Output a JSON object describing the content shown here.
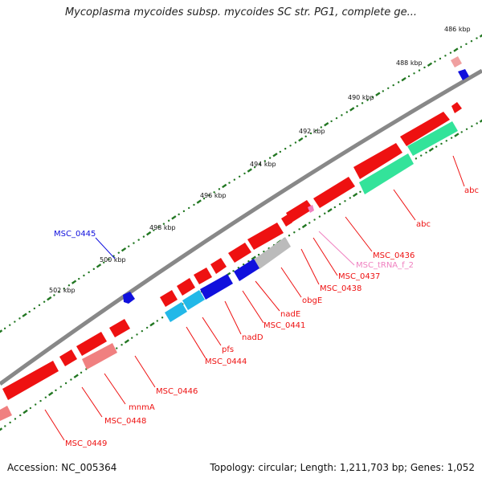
{
  "title": "Mycoplasma mycoides subsp. mycoides SC str. PG1, complete ge...",
  "footer": {
    "accession": "Accession: NC_005364",
    "topology": "Topology: circular; Length: 1,211,703 bp; Genes: 1,052"
  },
  "colors": {
    "backbone": "#808080",
    "cds_forward": "#ee1111",
    "cds_reverse": "#ee1111",
    "blue": "#1010dd",
    "cyan": "#22b8e8",
    "green": "#33e39a",
    "grey": "#bbbbbb",
    "pink": "#f08080",
    "trna_label": "#f080c0",
    "tick": "#227722"
  },
  "scale": {
    "ticks": [
      {
        "label": "486 kbp"
      },
      {
        "label": "488 kbp"
      },
      {
        "label": "490 kbp"
      },
      {
        "label": "492 kbp"
      },
      {
        "label": "494 kbp"
      },
      {
        "label": "496 kbp"
      },
      {
        "label": "498 kbp"
      },
      {
        "label": "500 kbp"
      },
      {
        "label": "502 kbp"
      }
    ]
  },
  "gene_labels": [
    {
      "text": "abc",
      "color": "red"
    },
    {
      "text": "abc",
      "color": "red"
    },
    {
      "text": "MSC_0436",
      "color": "red"
    },
    {
      "text": "MSC_tRNA_f_2",
      "color": "pink"
    },
    {
      "text": "MSC_0437",
      "color": "red"
    },
    {
      "text": "MSC_0438",
      "color": "red"
    },
    {
      "text": "obgE",
      "color": "red"
    },
    {
      "text": "nadE",
      "color": "red"
    },
    {
      "text": "MSC_0441",
      "color": "red"
    },
    {
      "text": "nadD",
      "color": "red"
    },
    {
      "text": "pfs",
      "color": "red"
    },
    {
      "text": "MSC_0444",
      "color": "red"
    },
    {
      "text": "MSC_0445",
      "color": "blue"
    },
    {
      "text": "MSC_0446",
      "color": "red"
    },
    {
      "text": "mnmA",
      "color": "red"
    },
    {
      "text": "MSC_0448",
      "color": "red"
    },
    {
      "text": "MSC_0449",
      "color": "red"
    }
  ]
}
